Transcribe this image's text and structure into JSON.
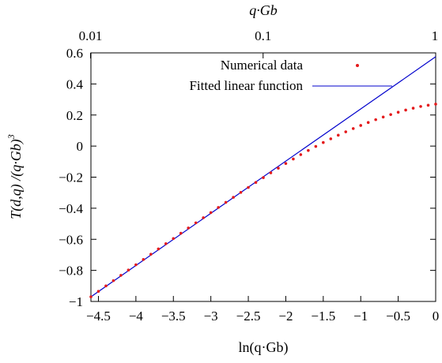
{
  "chart_data": {
    "type": "scatter",
    "x_top_label": "q·Gb",
    "x_bottom_label": "ln(q·Gb)",
    "y_label": "T(d,q) /(q·Gb)",
    "y_label_exponent": "3",
    "xlim": [
      -4.6,
      0
    ],
    "ylim": [
      -1,
      0.6
    ],
    "x_bottom_ticks": [
      {
        "value": -4.5,
        "label": "−4.5"
      },
      {
        "value": -4,
        "label": "−4"
      },
      {
        "value": -3.5,
        "label": "−3.5"
      },
      {
        "value": -3,
        "label": "−3"
      },
      {
        "value": -2.5,
        "label": "−2.5"
      },
      {
        "value": -2,
        "label": "−2"
      },
      {
        "value": -1.5,
        "label": "−1.5"
      },
      {
        "value": -1,
        "label": "−1"
      },
      {
        "value": -0.5,
        "label": "−0.5"
      },
      {
        "value": 0,
        "label": "0"
      }
    ],
    "x_top_ticks": [
      {
        "value": 0.01,
        "label": "0.01"
      },
      {
        "value": 0.1,
        "label": "0.1"
      },
      {
        "value": 1,
        "label": "1"
      }
    ],
    "y_ticks": [
      {
        "value": 0.6,
        "label": "0.6"
      },
      {
        "value": 0.4,
        "label": "0.4"
      },
      {
        "value": 0.2,
        "label": "0.2"
      },
      {
        "value": 0,
        "label": "0"
      },
      {
        "value": -0.2,
        "label": "−0.2"
      },
      {
        "value": -0.4,
        "label": "−0.4"
      },
      {
        "value": -0.6,
        "label": "−0.6"
      },
      {
        "value": -0.8,
        "label": "−0.8"
      },
      {
        "value": -1,
        "label": "−1"
      }
    ],
    "legend_position": "top-right",
    "series": [
      {
        "name": "Numerical data",
        "kind": "points",
        "color": "#e41a1c",
        "x": [
          -4.6,
          -4.5,
          -4.4,
          -4.3,
          -4.2,
          -4.1,
          -4.0,
          -3.9,
          -3.8,
          -3.7,
          -3.6,
          -3.5,
          -3.4,
          -3.3,
          -3.2,
          -3.1,
          -3.0,
          -2.9,
          -2.8,
          -2.7,
          -2.6,
          -2.5,
          -2.4,
          -2.3,
          -2.2,
          -2.1,
          -2.0,
          -1.9,
          -1.8,
          -1.7,
          -1.6,
          -1.5,
          -1.4,
          -1.3,
          -1.2,
          -1.1,
          -1.0,
          -0.9,
          -0.8,
          -0.7,
          -0.6,
          -0.5,
          -0.4,
          -0.3,
          -0.2,
          -0.1,
          0.0
        ],
        "y": [
          -0.97,
          -0.935,
          -0.9,
          -0.866,
          -0.832,
          -0.798,
          -0.764,
          -0.73,
          -0.696,
          -0.662,
          -0.628,
          -0.595,
          -0.561,
          -0.527,
          -0.494,
          -0.461,
          -0.428,
          -0.395,
          -0.362,
          -0.33,
          -0.298,
          -0.266,
          -0.234,
          -0.203,
          -0.172,
          -0.142,
          -0.112,
          -0.083,
          -0.055,
          -0.028,
          -0.002,
          0.023,
          0.047,
          0.07,
          0.092,
          0.113,
          0.133,
          0.152,
          0.17,
          0.187,
          0.203,
          0.218,
          0.232,
          0.244,
          0.255,
          0.263,
          0.27
        ]
      },
      {
        "name": "Fitted linear function",
        "kind": "line",
        "color": "#0000cc",
        "x": [
          -4.6,
          0
        ],
        "y": [
          -0.97,
          0.575
        ]
      }
    ]
  }
}
